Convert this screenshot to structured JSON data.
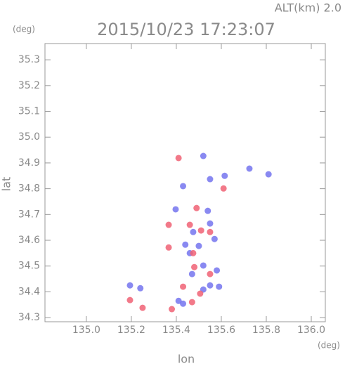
{
  "chart_data": {
    "type": "scatter",
    "title": "2015/10/23 17:23:07",
    "subtitle": "ALT(km) 2.0",
    "y_unit": "(deg)",
    "x_unit": "(deg)",
    "y_label": "lat",
    "x_label": "lon",
    "xlim": [
      134.816,
      136.0625
    ],
    "ylim": [
      34.284,
      35.363
    ],
    "xticks": [
      {
        "value": 135.0,
        "label": "135.0"
      },
      {
        "value": 135.2,
        "label": "135.2"
      },
      {
        "value": 135.4,
        "label": "135.4"
      },
      {
        "value": 135.6,
        "label": "135.6"
      },
      {
        "value": 135.8,
        "label": "135.8"
      },
      {
        "value": 136.0,
        "label": "136.0"
      }
    ],
    "yticks": [
      {
        "value": 34.3,
        "label": "34.3"
      },
      34.4,
      34.5,
      34.6,
      34.7,
      34.8,
      34.9,
      {
        "value": 35.0,
        "label": "35.0"
      },
      35.1,
      35.2,
      35.3
    ],
    "series": [
      {
        "color": "#7474ee",
        "x": [
          135.194,
          135.24,
          135.41,
          135.43,
          135.52,
          135.55,
          135.59,
          135.47,
          135.58,
          135.44,
          135.475,
          135.54,
          135.55,
          135.43,
          135.55,
          135.615,
          135.52,
          135.725,
          135.81,
          135.46,
          135.5,
          135.57,
          135.52,
          135.397
        ],
        "values": [
          34.425,
          34.414,
          34.365,
          34.354,
          34.409,
          34.425,
          34.42,
          34.469,
          34.483,
          34.583,
          34.632,
          34.714,
          34.665,
          34.81,
          34.837,
          34.85,
          34.927,
          34.878,
          34.856,
          34.55,
          34.578,
          34.605,
          34.502,
          34.72
        ]
      },
      {
        "color": "#f06274",
        "x": [
          135.194,
          135.25,
          135.38,
          135.43,
          135.47,
          135.506,
          135.48,
          135.475,
          135.51,
          135.366,
          135.46,
          135.55,
          135.41,
          135.61,
          135.49,
          135.55,
          135.366
        ],
        "values": [
          34.368,
          34.338,
          34.333,
          34.42,
          34.36,
          34.393,
          34.496,
          34.55,
          34.638,
          34.66,
          34.66,
          34.632,
          34.919,
          34.801,
          34.725,
          34.469,
          34.572
        ]
      }
    ]
  }
}
